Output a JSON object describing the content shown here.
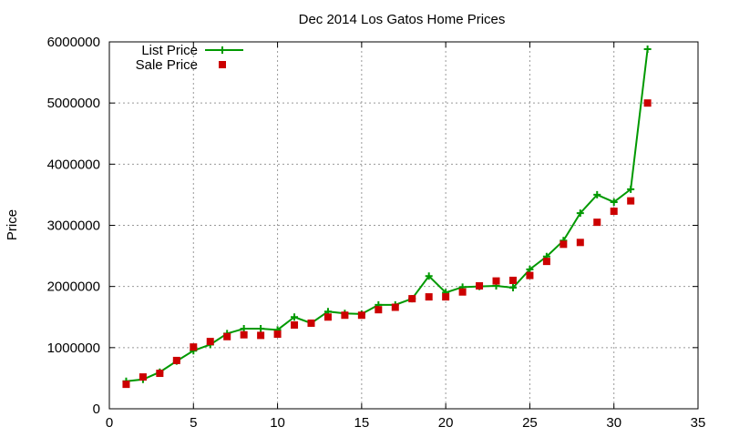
{
  "chart_data": {
    "type": "line",
    "title": "Dec 2014 Los Gatos Home Prices",
    "xlabel": "",
    "ylabel": "Price",
    "xlim": [
      0,
      35
    ],
    "ylim": [
      0,
      6000000
    ],
    "xticks": [
      "0",
      "5",
      "10",
      "15",
      "20",
      "25",
      "30",
      "35"
    ],
    "yticks": [
      "0",
      "1000000",
      "2000000",
      "3000000",
      "4000000",
      "5000000",
      "6000000"
    ],
    "grid": true,
    "legend_position": "top-left",
    "series": [
      {
        "name": "List Price",
        "style": "line-plus",
        "color": "#009900",
        "x": [
          1,
          2,
          3,
          4,
          5,
          6,
          7,
          8,
          9,
          10,
          11,
          12,
          13,
          14,
          15,
          16,
          17,
          18,
          19,
          20,
          21,
          22,
          23,
          24,
          25,
          26,
          27,
          28,
          29,
          30,
          31,
          32
        ],
        "y": [
          450000,
          480000,
          600000,
          780000,
          950000,
          1050000,
          1230000,
          1310000,
          1310000,
          1290000,
          1500000,
          1400000,
          1590000,
          1560000,
          1550000,
          1700000,
          1700000,
          1800000,
          2170000,
          1900000,
          1990000,
          2000000,
          2010000,
          1980000,
          2280000,
          2490000,
          2750000,
          3200000,
          3500000,
          3380000,
          3590000,
          5880000
        ]
      },
      {
        "name": "Sale Price",
        "style": "square-marker",
        "color": "#cc0000",
        "x": [
          1,
          2,
          3,
          4,
          5,
          6,
          7,
          8,
          9,
          10,
          11,
          12,
          13,
          14,
          15,
          16,
          17,
          18,
          19,
          20,
          21,
          22,
          23,
          24,
          25,
          26,
          27,
          28,
          29,
          30,
          31,
          32
        ],
        "y": [
          400000,
          520000,
          580000,
          790000,
          1010000,
          1100000,
          1180000,
          1210000,
          1200000,
          1220000,
          1370000,
          1400000,
          1500000,
          1530000,
          1530000,
          1620000,
          1660000,
          1800000,
          1830000,
          1830000,
          1910000,
          2010000,
          2090000,
          2100000,
          2180000,
          2410000,
          2690000,
          2720000,
          3050000,
          3230000,
          3400000,
          5000000
        ]
      }
    ]
  }
}
